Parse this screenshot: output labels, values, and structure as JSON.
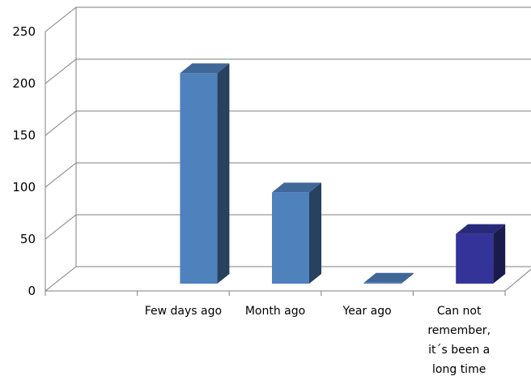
{
  "chart_data": {
    "type": "bar",
    "categories": [
      "Few days ago",
      "Month ago",
      "Year ago",
      "Can not\nremember,\nit´s been a\nlong time"
    ],
    "values": [
      210,
      95,
      8,
      55
    ],
    "ylim": [
      0,
      250
    ],
    "yticks": [
      0,
      50,
      100,
      150,
      200,
      250
    ],
    "grid": true,
    "colors": [
      "#4f81bd",
      "#4f81bd",
      "#4f81bd",
      "#333399"
    ]
  }
}
